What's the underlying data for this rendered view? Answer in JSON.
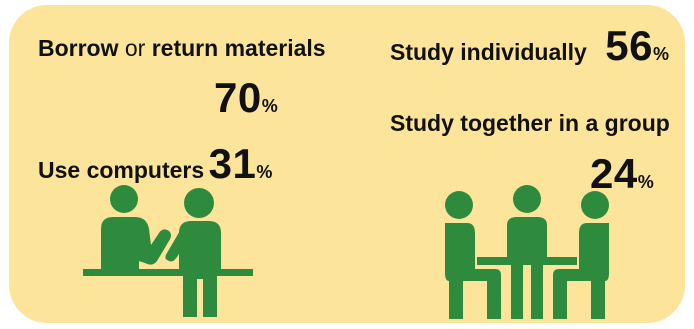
{
  "stats": {
    "borrow": {
      "label_strong_1": "Borrow",
      "label_connector": "or",
      "label_strong_2": "return materials",
      "value": "70",
      "unit": "%"
    },
    "individual": {
      "label": "Study individually",
      "value": "56",
      "unit": "%"
    },
    "group": {
      "label": "Study together in a group",
      "value": "24",
      "unit": "%"
    },
    "computers": {
      "label": "Use computers",
      "value": "31",
      "unit": "%"
    }
  },
  "colors": {
    "background": "#FCE49A",
    "figure_green": "#2E8B3E",
    "text": "#111111"
  },
  "icons": {
    "left_figure": "two-people-at-counter-icon",
    "right_figure": "group-at-table-icon"
  }
}
